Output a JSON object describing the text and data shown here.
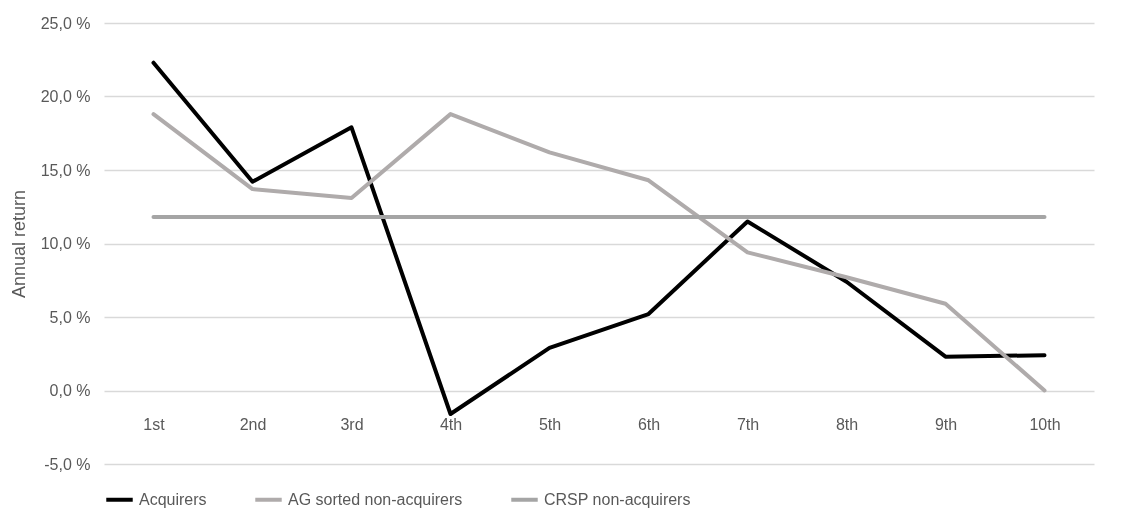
{
  "chart_data": {
    "type": "line",
    "ylabel": "Annual return",
    "categories": [
      "1st",
      "2nd",
      "3rd",
      "4th",
      "5th",
      "6th",
      "7th",
      "8th",
      "9th",
      "10th"
    ],
    "series": [
      {
        "name": "Acquirers",
        "color": "#000000",
        "values": [
          22.3,
          14.2,
          17.9,
          -1.6,
          2.9,
          5.2,
          11.5,
          7.4,
          2.3,
          2.4
        ]
      },
      {
        "name": "AG sorted non-acquirers",
        "color": "#afabab",
        "values": [
          18.8,
          13.7,
          13.1,
          18.8,
          16.2,
          14.3,
          9.4,
          7.7,
          5.9,
          0.0
        ]
      },
      {
        "name": "CRSP non-acquirers",
        "color": "#a5a5a5",
        "values": [
          11.8,
          11.8,
          11.8,
          11.8,
          11.8,
          11.8,
          11.8,
          11.8,
          11.8,
          11.8
        ]
      }
    ],
    "ylim": [
      -5,
      25
    ],
    "yticks": [
      {
        "value": -5,
        "label": "-5,0 %"
      },
      {
        "value": 0,
        "label": "0,0 %"
      },
      {
        "value": 5,
        "label": "5,0 %"
      },
      {
        "value": 10,
        "label": "10,0 %"
      },
      {
        "value": 15,
        "label": "15,0 %"
      },
      {
        "value": 20,
        "label": "20,0 %"
      },
      {
        "value": 25,
        "label": "25,0 %"
      }
    ],
    "grid": "y",
    "legend": "bottom",
    "marker": "none",
    "line_style": "solid"
  }
}
